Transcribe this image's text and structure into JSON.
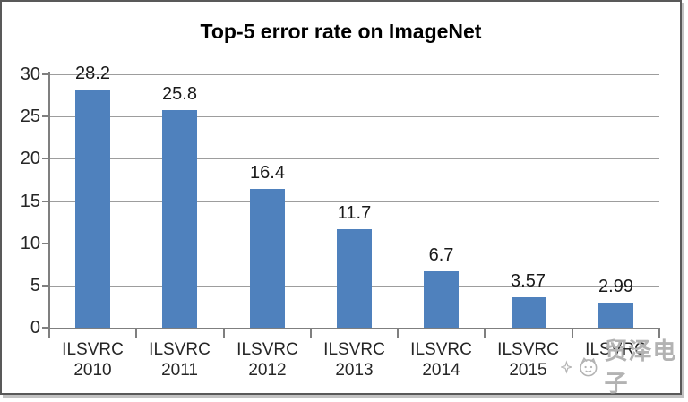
{
  "title": "Top-5 error rate on ImageNet",
  "watermark": {
    "text": "贸泽电子",
    "sparkle_icon": "sparkle-icon",
    "logo_icon": "cat-face-logo-icon"
  },
  "colors": {
    "bar": "#4F81BD",
    "gridline": "#9D9D9D",
    "axis": "#7F7F7F",
    "label_text": "#262626",
    "title_text": "#000000",
    "frame_border": "#595959",
    "watermark": "#B3B3B3",
    "background": "#FFFFFF"
  },
  "chart_data": {
    "type": "bar",
    "title": "Top-5 error rate on ImageNet",
    "categories": [
      "ILSVRC\n2010",
      "ILSVRC\n2011",
      "ILSVRC\n2012",
      "ILSVRC\n2013",
      "ILSVRC\n2014",
      "ILSVRC\n2015",
      "ILSVRC"
    ],
    "values": [
      28.2,
      25.8,
      16.4,
      11.7,
      6.7,
      3.57,
      2.99
    ],
    "value_labels": [
      "28.2",
      "25.8",
      "16.4",
      "11.7",
      "6.7",
      "3.57",
      "2.99"
    ],
    "xlabel": "",
    "ylabel": "",
    "ylim": [
      0,
      30
    ],
    "yticks": [
      0,
      5,
      10,
      15,
      20,
      25,
      30
    ],
    "grid": true,
    "legend": false,
    "note": "last category year is covered by watermark"
  }
}
